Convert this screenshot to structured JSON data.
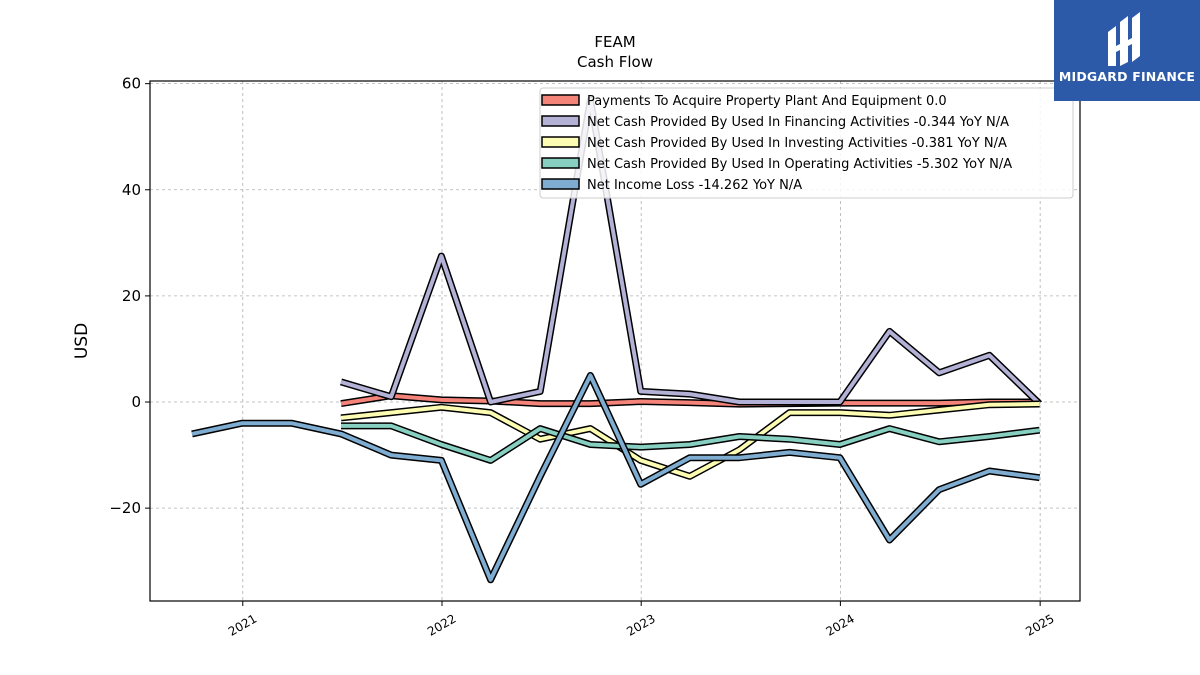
{
  "brand": {
    "name": "MIDGARD FINANCE",
    "bg_color": "#2d5aa8"
  },
  "chart_data": {
    "type": "line",
    "title": "FEAM",
    "subtitle": "Cash Flow",
    "ylabel": "USD",
    "xlabel": "",
    "xlim": [
      "2020-07-15",
      "2025-03-15"
    ],
    "ylim": [
      -37.5,
      60.5
    ],
    "yticks": [
      -20,
      0,
      20,
      40,
      60
    ],
    "ytick_labels": [
      "−20",
      "0",
      "20",
      "40",
      "60"
    ],
    "xticks": [
      {
        "label": "2021",
        "x": "2021-01-01"
      },
      {
        "label": "2022",
        "x": "2022-01-01"
      },
      {
        "label": "2023",
        "x": "2023-01-01"
      },
      {
        "label": "2024",
        "x": "2024-01-01"
      },
      {
        "label": "2025",
        "x": "2025-01-01"
      }
    ],
    "grid": true,
    "legend_position": "top-right",
    "series": [
      {
        "name": "Payments To Acquire Property Plant And Equipment",
        "legend": "Payments To Acquire Property Plant And Equipment  0.0",
        "color": "#f4847a",
        "x": [
          "2021-06-30",
          "2021-09-30",
          "2021-12-31",
          "2022-03-31",
          "2022-06-30",
          "2022-09-30",
          "2022-12-31",
          "2023-03-31",
          "2023-06-30",
          "2023-09-30",
          "2023-12-31",
          "2024-03-31",
          "2024-06-30",
          "2024-09-30",
          "2024-12-31"
        ],
        "y": [
          -0.3,
          1.2,
          0.4,
          0.2,
          -0.3,
          -0.3,
          0.1,
          -0.1,
          -0.4,
          -0.3,
          -0.2,
          -0.2,
          -0.2,
          0.0,
          0.0
        ]
      },
      {
        "name": "Net Cash Provided By Used In Financing Activities",
        "legend": "Net Cash Provided By Used In Financing Activities  -0.344 YoY N/A",
        "color": "#b3b1d6",
        "x": [
          "2021-06-30",
          "2021-09-30",
          "2021-12-31",
          "2022-03-31",
          "2022-06-30",
          "2022-09-30",
          "2022-12-31",
          "2023-03-31",
          "2023-06-30",
          "2023-09-30",
          "2023-12-31",
          "2024-03-31",
          "2024-06-30",
          "2024-09-30",
          "2024-12-31"
        ],
        "y": [
          3.8,
          1.0,
          27.5,
          0.0,
          2.0,
          57.0,
          2.0,
          1.5,
          0.0,
          0.0,
          0.0,
          13.3,
          5.5,
          8.8,
          -0.344
        ]
      },
      {
        "name": "Net Cash Provided By Used In Investing Activities",
        "legend": "Net Cash Provided By Used In Investing Activities  -0.381 YoY N/A",
        "color": "#fdfcb3",
        "x": [
          "2021-06-30",
          "2021-09-30",
          "2021-12-31",
          "2022-03-31",
          "2022-06-30",
          "2022-09-30",
          "2022-12-31",
          "2023-03-31",
          "2023-06-30",
          "2023-09-30",
          "2023-12-31",
          "2024-03-31",
          "2024-06-30",
          "2024-09-30",
          "2024-12-31"
        ],
        "y": [
          -3.0,
          -2.0,
          -1.0,
          -2.0,
          -7.0,
          -5.0,
          -11.0,
          -14.0,
          -9.0,
          -2.0,
          -2.0,
          -2.5,
          -1.5,
          -0.5,
          -0.381
        ]
      },
      {
        "name": "Net Cash Provided By Used In Operating Activities",
        "legend": "Net Cash Provided By Used In Operating Activities  -5.302 YoY N/A",
        "color": "#87cfc0",
        "x": [
          "2021-06-30",
          "2021-09-30",
          "2021-12-31",
          "2022-03-31",
          "2022-06-30",
          "2022-09-30",
          "2022-12-31",
          "2023-03-31",
          "2023-06-30",
          "2023-09-30",
          "2023-12-31",
          "2024-03-31",
          "2024-06-30",
          "2024-09-30",
          "2024-12-31"
        ],
        "y": [
          -4.5,
          -4.5,
          -8.0,
          -11.0,
          -5.0,
          -8.0,
          -8.5,
          -8.0,
          -6.5,
          -7.0,
          -8.0,
          -5.0,
          -7.5,
          -6.5,
          -5.302
        ]
      },
      {
        "name": "Net Income Loss",
        "legend": "Net Income Loss  -14.262 YoY N/A",
        "color": "#7fadd1",
        "x": [
          "2020-09-30",
          "2020-12-31",
          "2021-03-31",
          "2021-06-30",
          "2021-09-30",
          "2021-12-31",
          "2022-03-31",
          "2022-06-30",
          "2022-09-30",
          "2022-12-31",
          "2023-03-31",
          "2023-06-30",
          "2023-09-30",
          "2023-12-31",
          "2024-03-31",
          "2024-06-30",
          "2024-09-30",
          "2024-12-31"
        ],
        "y": [
          -6.0,
          -4.0,
          -4.0,
          -6.0,
          -10.0,
          -11.0,
          -33.5,
          -14.0,
          5.0,
          -15.5,
          -10.5,
          -10.5,
          -9.5,
          -10.5,
          -26.0,
          -16.5,
          -13.0,
          -14.262
        ]
      }
    ]
  }
}
